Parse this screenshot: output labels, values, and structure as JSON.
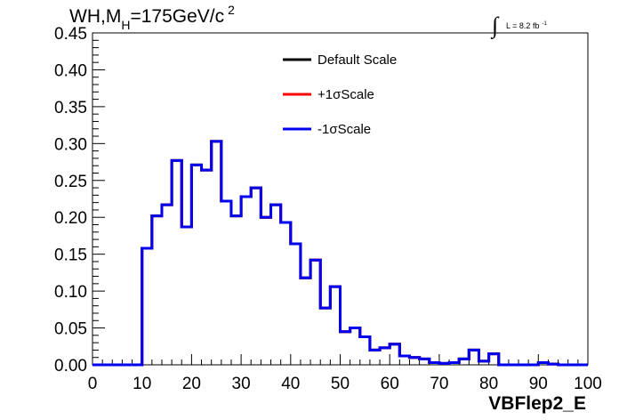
{
  "chart_data": {
    "type": "line",
    "title_main": "WH,M",
    "title_sub": "H",
    "title_rest": "=175GeV/c",
    "title_sup": "2",
    "lumi_label": "L = 8.2 fb",
    "lumi_sup": "-1",
    "xlabel": "VBFlep2_E",
    "ylabel": "",
    "xlim": [
      0,
      100
    ],
    "ylim": [
      0,
      0.45
    ],
    "x_ticks": [
      "0",
      "10",
      "20",
      "30",
      "40",
      "50",
      "60",
      "70",
      "80",
      "90",
      "100"
    ],
    "y_ticks": [
      "0.00",
      "0.05",
      "0.10",
      "0.15",
      "0.20",
      "0.25",
      "0.30",
      "0.35",
      "0.40",
      "0.45"
    ],
    "grid": false,
    "legend_position": "top-center",
    "bin_width": 2,
    "bin_edges_start": 0,
    "series": [
      {
        "name": "Default Scale",
        "color": "#000000",
        "values": [
          0,
          0,
          0,
          0,
          0,
          0.158,
          0.202,
          0.217,
          0.277,
          0.187,
          0.271,
          0.264,
          0.303,
          0.222,
          0.202,
          0.228,
          0.24,
          0.2,
          0.217,
          0.193,
          0.164,
          0.118,
          0.142,
          0.077,
          0.106,
          0.045,
          0.05,
          0.038,
          0.02,
          0.023,
          0.028,
          0.012,
          0.01,
          0.008,
          0.003,
          0.002,
          0.003,
          0.008,
          0.02,
          0.005,
          0.015,
          0,
          0,
          0,
          0,
          0.003,
          0.001,
          0,
          0,
          0
        ]
      },
      {
        "name": "+1σScale",
        "color": "#ff0000",
        "values": [
          0,
          0,
          0,
          0,
          0,
          0.158,
          0.202,
          0.217,
          0.277,
          0.187,
          0.271,
          0.264,
          0.303,
          0.222,
          0.202,
          0.228,
          0.24,
          0.2,
          0.217,
          0.193,
          0.164,
          0.118,
          0.142,
          0.077,
          0.106,
          0.045,
          0.05,
          0.038,
          0.02,
          0.023,
          0.028,
          0.012,
          0.01,
          0.008,
          0.003,
          0.002,
          0.003,
          0.008,
          0.02,
          0.005,
          0.015,
          0,
          0,
          0,
          0,
          0.003,
          0.001,
          0,
          0,
          0
        ]
      },
      {
        "name": "-1σScale",
        "color": "#0000ee",
        "values": [
          0,
          0,
          0,
          0,
          0,
          0.158,
          0.202,
          0.217,
          0.277,
          0.187,
          0.271,
          0.264,
          0.303,
          0.222,
          0.202,
          0.228,
          0.24,
          0.2,
          0.217,
          0.193,
          0.164,
          0.118,
          0.142,
          0.077,
          0.106,
          0.045,
          0.05,
          0.038,
          0.02,
          0.023,
          0.028,
          0.012,
          0.01,
          0.008,
          0.003,
          0.002,
          0.003,
          0.008,
          0.02,
          0.005,
          0.015,
          0,
          0,
          0,
          0,
          0.003,
          0.001,
          0,
          0,
          0
        ]
      }
    ]
  }
}
